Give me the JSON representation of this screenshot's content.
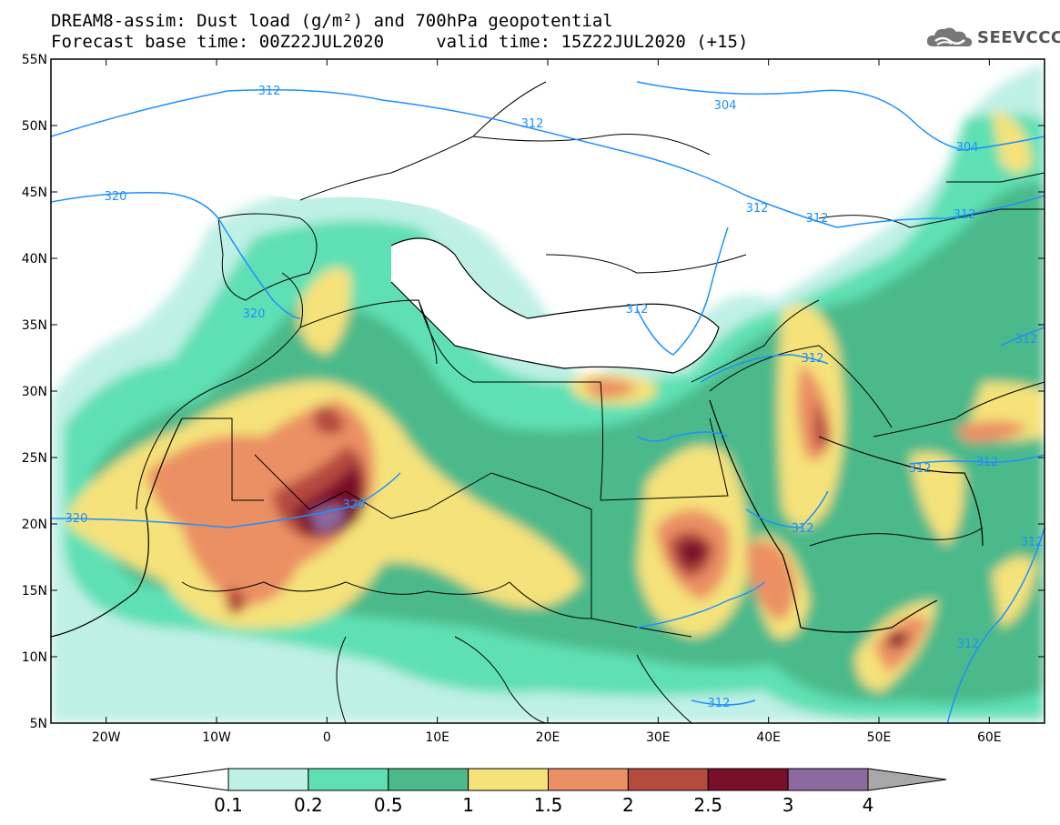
{
  "title": {
    "line1": "DREAM8-assim: Dust load (g/m²) and 700hPa geopotential",
    "line2": "Forecast base time: 00Z22JUL2020     valid time: 15Z22JUL2020 (+15)"
  },
  "logo": {
    "text": "SEEVCCC",
    "icon": "cloud-icon"
  },
  "map": {
    "lon_range": [
      -25,
      65
    ],
    "lat_range": [
      5,
      55
    ],
    "lat_ticks": [
      "55N",
      "50N",
      "45N",
      "40N",
      "35N",
      "30N",
      "25N",
      "20N",
      "15N",
      "10N",
      "5N"
    ],
    "lon_ticks": [
      "20W",
      "10W",
      "0",
      "10E",
      "20E",
      "30E",
      "40E",
      "50E",
      "60E"
    ]
  },
  "contour_labels": [
    "312",
    "304",
    "312",
    "320",
    "312",
    "312",
    "304",
    "312",
    "320",
    "312",
    "312",
    "312",
    "312",
    "312",
    "320",
    "312",
    "312",
    "312",
    "312"
  ],
  "colorbar": {
    "labels": [
      "0.1",
      "0.2",
      "0.5",
      "1",
      "1.5",
      "2",
      "2.5",
      "3",
      "4"
    ],
    "colors": [
      "#ffffff",
      "#bff0e6",
      "#5fe0b4",
      "#4cb98a",
      "#f5e27a",
      "#eb9064",
      "#b54a3f",
      "#7a0f2a",
      "#8c6aa0",
      "#a8a8a8"
    ]
  }
}
